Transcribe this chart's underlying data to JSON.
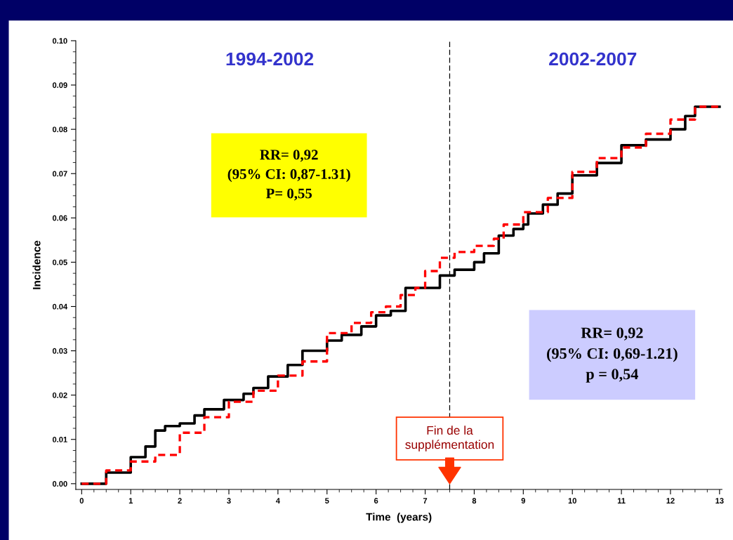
{
  "chart_data": {
    "type": "step",
    "xlabel": "Time  (years)",
    "ylabel": "Incidence",
    "xlim": [
      -0.12,
      13.05
    ],
    "ylim": [
      -0.0013,
      0.1
    ],
    "xticks": [
      0,
      1,
      2,
      3,
      4,
      5,
      6,
      7,
      8,
      9,
      10,
      11,
      12,
      13
    ],
    "yticks": [
      {
        "value": 0,
        "label": "0.00"
      },
      {
        "value": 0.01,
        "label": "0.01"
      },
      {
        "value": 0.02,
        "label": "0.02"
      },
      {
        "value": 0.03,
        "label": "0.03"
      },
      {
        "value": 0.04,
        "label": "0.04"
      },
      {
        "value": 0.05,
        "label": "0.05"
      },
      {
        "value": 0.06,
        "label": "0.06"
      },
      {
        "value": 0.07,
        "label": "0.07"
      },
      {
        "value": 0.08,
        "label": "0.08"
      },
      {
        "value": 0.09,
        "label": "0.09"
      },
      {
        "value": 0.1,
        "label": "0.10"
      }
    ],
    "grid": false,
    "legend": false,
    "marker": "none",
    "series": [
      {
        "color": "#000000",
        "line_style": "solid",
        "x": [
          0,
          0.5,
          1.0,
          1.3,
          1.5,
          1.7,
          2.0,
          2.3,
          2.5,
          2.9,
          3.3,
          3.5,
          3.8,
          4.2,
          4.5,
          5.0,
          5.3,
          5.7,
          6.0,
          6.3,
          6.6,
          7.0,
          7.3,
          7.6,
          8.0,
          8.2,
          8.5,
          8.8,
          9.0,
          9.1,
          9.4,
          9.7,
          10.0,
          10.5,
          11.0,
          11.5,
          12.0,
          12.3,
          12.5,
          13.0
        ],
        "values": [
          0,
          0.0025,
          0.006,
          0.0084,
          0.012,
          0.013,
          0.0136,
          0.0154,
          0.0168,
          0.0189,
          0.0203,
          0.0216,
          0.0242,
          0.0268,
          0.03,
          0.0323,
          0.0336,
          0.0355,
          0.038,
          0.039,
          0.0442,
          0.0442,
          0.047,
          0.0483,
          0.05,
          0.052,
          0.056,
          0.0575,
          0.0585,
          0.061,
          0.063,
          0.0655,
          0.0696,
          0.0724,
          0.0764,
          0.0777,
          0.08,
          0.083,
          0.0851,
          0.0851
        ]
      },
      {
        "color": "#ff0000",
        "line_style": "dashed",
        "x": [
          0,
          0.5,
          1.0,
          1.5,
          2.0,
          2.5,
          3.0,
          3.5,
          4.0,
          4.5,
          5.0,
          5.5,
          5.9,
          6.2,
          6.5,
          6.8,
          7.0,
          7.3,
          7.6,
          8.0,
          8.4,
          8.6,
          9.0,
          9.5,
          10.0,
          10.5,
          11.0,
          11.5,
          12.0,
          12.5,
          13.0
        ],
        "values": [
          0,
          0.003,
          0.005,
          0.0065,
          0.0115,
          0.015,
          0.0185,
          0.021,
          0.0244,
          0.0276,
          0.034,
          0.0363,
          0.0387,
          0.04,
          0.0426,
          0.0442,
          0.048,
          0.051,
          0.0523,
          0.0537,
          0.0553,
          0.0585,
          0.0613,
          0.0645,
          0.0704,
          0.0735,
          0.0759,
          0.079,
          0.0822,
          0.0851,
          0.0851
        ]
      }
    ],
    "ref_lines": [
      {
        "axis": "x",
        "value": 7.5,
        "color": "#000000",
        "line_style": "dashed"
      }
    ],
    "annotations": [
      "1994-2002",
      "2002-2007",
      "RR= 0,92\n(95% CI: 0,87-1.31)\nP= 0,55",
      "RR= 0,92\n(95% CI: 0,69-1.21)\np = 0,54",
      {
        "text": "Fin de la\nsupplémentation",
        "x": 7.5,
        "y": 0
      }
    ]
  }
}
